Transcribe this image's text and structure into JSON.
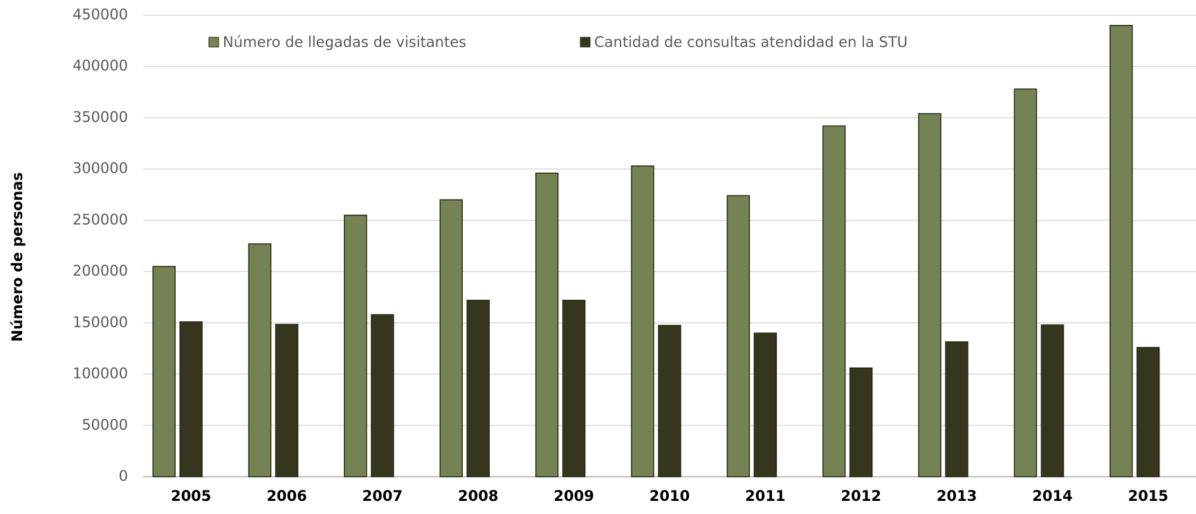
{
  "chart_data": {
    "type": "bar",
    "y_label": "Número de  personas",
    "categories": [
      "2005",
      "2006",
      "2007",
      "2008",
      "2009",
      "2010",
      "2011",
      "2012",
      "2013",
      "2014",
      "2015"
    ],
    "series": [
      {
        "name": "Número de llegadas de visitantes",
        "color": "#758354",
        "values": [
          205000,
          227000,
          255000,
          270000,
          296000,
          303000,
          274000,
          342000,
          354000,
          378000,
          440000
        ]
      },
      {
        "name": "Cantidad de consultas atendidad en la STU",
        "color": "#36361f",
        "values": [
          151000,
          148500,
          158000,
          172000,
          172000,
          147500,
          140000,
          106000,
          131500,
          148000,
          126000
        ]
      }
    ],
    "ylim": [
      0,
      450000
    ],
    "yticks": [
      0,
      50000,
      100000,
      150000,
      200000,
      250000,
      300000,
      350000,
      400000,
      450000
    ],
    "grid": true
  }
}
